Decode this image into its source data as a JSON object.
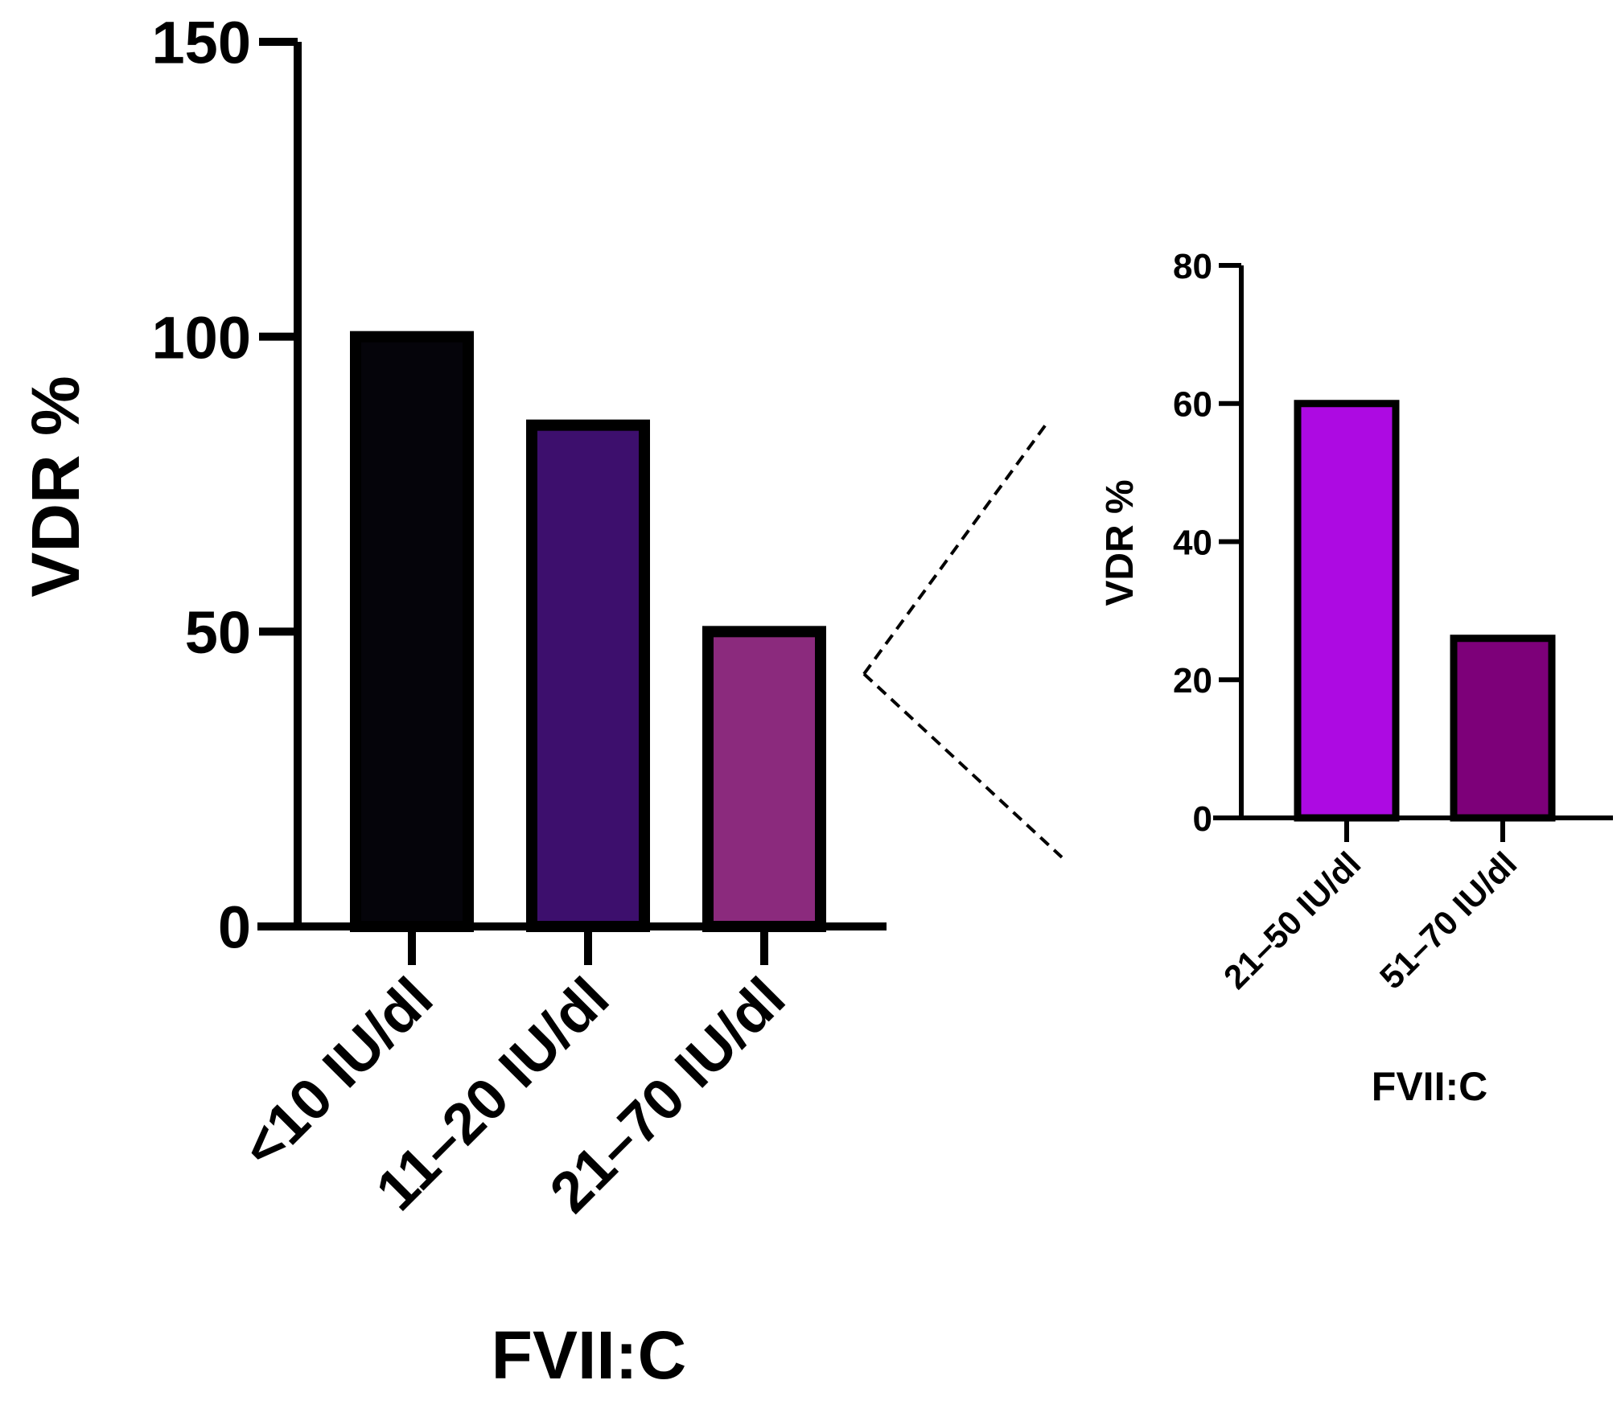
{
  "chart_data": [
    {
      "type": "bar",
      "title": "",
      "xlabel": "FVII:C",
      "ylabel": "VDR %",
      "ylim": [
        0,
        150
      ],
      "yticks": [
        0,
        50,
        100,
        150
      ],
      "grid": false,
      "categories": [
        "<10 IU/dl",
        "11–20 IU/dl",
        "21–70 IU/dl"
      ],
      "values": [
        100,
        85,
        50
      ],
      "colors": [
        "#05040a",
        "#3d0f6d",
        "#8b2a7d"
      ]
    },
    {
      "type": "bar",
      "title": "",
      "xlabel": "FVII:C",
      "ylabel": "VDR %",
      "ylim": [
        0,
        80
      ],
      "yticks": [
        0,
        20,
        40,
        60,
        80
      ],
      "grid": false,
      "categories": [
        "21–50 IU/dl",
        "51–70 IU/dl"
      ],
      "values": [
        60,
        26
      ],
      "colors": [
        "#ad0ae2",
        "#7d0079"
      ]
    }
  ]
}
